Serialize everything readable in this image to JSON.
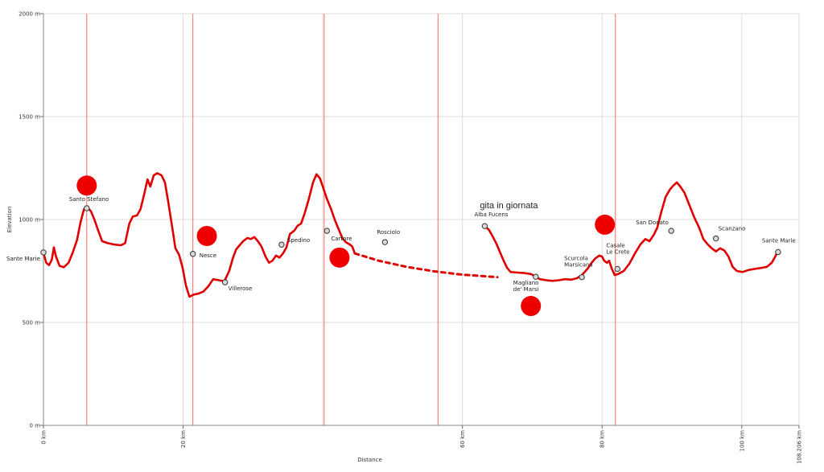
{
  "chart_data": {
    "type": "line",
    "ylabel": "Elevation",
    "xlabel": "Distance",
    "xlim": [
      0,
      108.206
    ],
    "ylim": [
      0,
      2000
    ],
    "y_ticks": [
      {
        "value": 0,
        "label": "0 m"
      },
      {
        "value": 500,
        "label": "500 m"
      },
      {
        "value": 1000,
        "label": "1000 m"
      },
      {
        "value": 1500,
        "label": "1500 m"
      },
      {
        "value": 2000,
        "label": "2000 m"
      }
    ],
    "x_ticks": [
      {
        "value": 0,
        "label": "0 km"
      },
      {
        "value": 20,
        "label": "20 km"
      },
      {
        "value": 60,
        "label": "60 km"
      },
      {
        "value": 80,
        "label": "80 km"
      },
      {
        "value": 100,
        "label": "100 km"
      },
      {
        "value": 108.206,
        "label": "108.206 km"
      }
    ],
    "x_gridlines": [
      0,
      20,
      40,
      60,
      80,
      100,
      108.206
    ],
    "grid": true,
    "colors": {
      "profile": "#e00000",
      "marker_line": "#ff6666",
      "grid": "#dddddd",
      "dot": "#ee0000"
    },
    "series": [
      {
        "style": "solid",
        "points": [
          [
            0,
            838
          ],
          [
            0.4,
            790
          ],
          [
            0.8,
            778
          ],
          [
            1.2,
            805
          ],
          [
            1.5,
            865
          ],
          [
            1.8,
            820
          ],
          [
            2.3,
            775
          ],
          [
            2.9,
            768
          ],
          [
            3.6,
            790
          ],
          [
            4.2,
            840
          ],
          [
            4.8,
            900
          ],
          [
            5.3,
            985
          ],
          [
            5.8,
            1050
          ],
          [
            6.3,
            1060
          ],
          [
            6.8,
            1040
          ],
          [
            7.3,
            1000
          ],
          [
            7.8,
            950
          ],
          [
            8.4,
            895
          ],
          [
            9.2,
            885
          ],
          [
            10.2,
            878
          ],
          [
            11.1,
            875
          ],
          [
            11.7,
            885
          ],
          [
            12.3,
            980
          ],
          [
            12.8,
            1015
          ],
          [
            13.4,
            1020
          ],
          [
            13.9,
            1050
          ],
          [
            14.4,
            1120
          ],
          [
            14.9,
            1195
          ],
          [
            15.3,
            1160
          ],
          [
            15.8,
            1215
          ],
          [
            16.3,
            1225
          ],
          [
            16.9,
            1215
          ],
          [
            17.4,
            1180
          ],
          [
            17.9,
            1080
          ],
          [
            18.4,
            970
          ],
          [
            18.9,
            860
          ],
          [
            19.4,
            830
          ],
          [
            19.9,
            770
          ],
          [
            20.4,
            680
          ],
          [
            20.9,
            625
          ],
          [
            21.5,
            635
          ],
          [
            22.2,
            640
          ],
          [
            22.9,
            650
          ],
          [
            23.6,
            675
          ],
          [
            24.3,
            710
          ],
          [
            25.1,
            705
          ],
          [
            25.9,
            700
          ],
          [
            26.6,
            750
          ],
          [
            27.1,
            810
          ],
          [
            27.6,
            855
          ],
          [
            28.1,
            875
          ],
          [
            28.6,
            895
          ],
          [
            29.2,
            910
          ],
          [
            29.7,
            905
          ],
          [
            30.2,
            915
          ],
          [
            30.7,
            895
          ],
          [
            31.2,
            870
          ],
          [
            31.8,
            820
          ],
          [
            32.3,
            790
          ],
          [
            32.8,
            800
          ],
          [
            33.3,
            825
          ],
          [
            33.8,
            815
          ],
          [
            34.3,
            835
          ],
          [
            34.8,
            865
          ],
          [
            35.3,
            930
          ],
          [
            35.9,
            945
          ],
          [
            36.4,
            970
          ],
          [
            36.9,
            980
          ],
          [
            37.4,
            1030
          ],
          [
            38.0,
            1100
          ],
          [
            38.6,
            1180
          ],
          [
            39.1,
            1220
          ],
          [
            39.6,
            1200
          ],
          [
            40.1,
            1150
          ],
          [
            40.6,
            1100
          ],
          [
            41.2,
            1050
          ],
          [
            41.7,
            1000
          ],
          [
            42.3,
            950
          ],
          [
            42.8,
            910
          ],
          [
            43.3,
            890
          ],
          [
            43.8,
            880
          ],
          [
            44.2,
            870
          ],
          [
            44.6,
            835
          ]
        ]
      },
      {
        "style": "dashed",
        "points": [
          [
            44.6,
            835
          ],
          [
            48,
            800
          ],
          [
            52,
            770
          ],
          [
            56,
            748
          ],
          [
            60,
            732
          ],
          [
            63,
            725
          ],
          [
            65,
            720
          ]
        ]
      },
      {
        "style": "solid",
        "points": [
          [
            63.2,
            968
          ],
          [
            63.8,
            950
          ],
          [
            64.3,
            920
          ],
          [
            64.9,
            880
          ],
          [
            65.4,
            840
          ],
          [
            65.9,
            800
          ],
          [
            66.4,
            765
          ],
          [
            66.9,
            745
          ],
          [
            67.9,
            742
          ],
          [
            68.9,
            740
          ],
          [
            69.8,
            735
          ],
          [
            70.5,
            722
          ],
          [
            71.1,
            710
          ],
          [
            72,
            705
          ],
          [
            72.9,
            702
          ],
          [
            73.8,
            705
          ],
          [
            74.7,
            710
          ],
          [
            75.6,
            708
          ],
          [
            76.4,
            715
          ],
          [
            77.1,
            730
          ],
          [
            77.9,
            760
          ],
          [
            78.5,
            790
          ],
          [
            79,
            810
          ],
          [
            79.6,
            825
          ],
          [
            80,
            820
          ],
          [
            80.3,
            800
          ],
          [
            80.7,
            790
          ],
          [
            81,
            800
          ],
          [
            81.4,
            760
          ],
          [
            81.8,
            730
          ],
          [
            82.3,
            735
          ],
          [
            83.1,
            750
          ],
          [
            83.9,
            785
          ],
          [
            84.7,
            835
          ],
          [
            85.5,
            880
          ],
          [
            86.2,
            905
          ],
          [
            86.8,
            895
          ],
          [
            87.4,
            925
          ],
          [
            87.9,
            960
          ],
          [
            88.5,
            1040
          ],
          [
            89.1,
            1110
          ],
          [
            89.7,
            1145
          ],
          [
            90.2,
            1165
          ],
          [
            90.7,
            1180
          ],
          [
            91.2,
            1160
          ],
          [
            91.8,
            1130
          ],
          [
            92.5,
            1070
          ],
          [
            93.2,
            1010
          ],
          [
            93.9,
            960
          ],
          [
            94.5,
            905
          ],
          [
            95.1,
            880
          ],
          [
            95.7,
            860
          ],
          [
            96.3,
            845
          ],
          [
            96.9,
            860
          ],
          [
            97.5,
            850
          ],
          [
            98.1,
            820
          ],
          [
            98.7,
            770
          ],
          [
            99.3,
            750
          ],
          [
            100.1,
            745
          ],
          [
            101.0,
            755
          ],
          [
            101.9,
            760
          ],
          [
            102.8,
            765
          ],
          [
            103.6,
            770
          ],
          [
            104.3,
            790
          ],
          [
            104.8,
            820
          ],
          [
            105.2,
            850
          ]
        ]
      }
    ],
    "waypoints": [
      {
        "name": "Sante Marie",
        "x": 0,
        "y": 840,
        "ax": -46,
        "ay": 10
      },
      {
        "name": "Santo Stefano",
        "x": 6.2,
        "y": 1055,
        "ax": -22,
        "ay": -9
      },
      {
        "name": "Nesce",
        "x": 21.4,
        "y": 833,
        "ax": 8,
        "ay": 4
      },
      {
        "name": "Villerose",
        "x": 26.0,
        "y": 695,
        "ax": 4,
        "ay": 10
      },
      {
        "name": "Spedino",
        "x": 34.1,
        "y": 878,
        "ax": 7,
        "ay": -3
      },
      {
        "name": "Cartore",
        "x": 40.6,
        "y": 945,
        "ax": 5,
        "ay": 12
      },
      {
        "name": "Rosciolo",
        "x": 48.9,
        "y": 890,
        "ax": -10,
        "ay": -10
      },
      {
        "name": "Alba Fucens",
        "x": 63.2,
        "y": 968,
        "ax": -13,
        "ay": -12
      },
      {
        "name": "Magliano\nde' Marsi",
        "x": 70.5,
        "y": 722,
        "ax": -28,
        "ay": 10
      },
      {
        "name": "Scurcola\nMarsicana",
        "x": 77.1,
        "y": 720,
        "ax": -22,
        "ay": -21
      },
      {
        "name": "Casale\nLe Crete",
        "x": 82.2,
        "y": 760,
        "ax": -14,
        "ay": -27
      },
      {
        "name": "San Donato",
        "x": 89.9,
        "y": 945,
        "ax": -44,
        "ay": -8
      },
      {
        "name": "Scanzano",
        "x": 96.3,
        "y": 908,
        "ax": 3,
        "ay": -10
      },
      {
        "name": "Sante Marie",
        "x": 105.2,
        "y": 842,
        "ax": -20,
        "ay": -12
      }
    ],
    "annotations": [
      {
        "text": "gita in giornata",
        "x": 62.5,
        "y": 1055
      }
    ],
    "marker_lines": [
      6.2,
      21.4,
      40.2,
      56.5,
      81.9
    ],
    "dots": [
      {
        "x": 6.2,
        "y": 1165
      },
      {
        "x": 23.4,
        "y": 920
      },
      {
        "x": 42.4,
        "y": 815
      },
      {
        "x": 69.8,
        "y": 580
      },
      {
        "x": 80.4,
        "y": 975
      }
    ]
  }
}
